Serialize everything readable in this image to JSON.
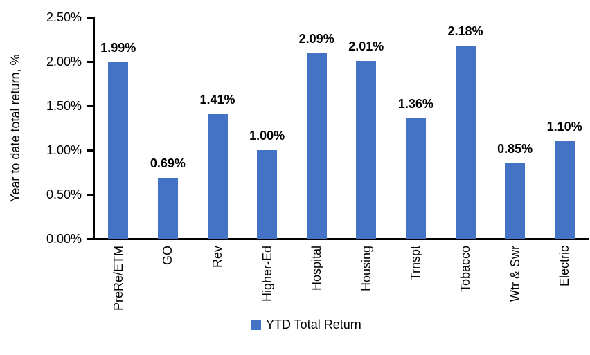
{
  "chart_data": {
    "type": "bar",
    "title": "",
    "xlabel": "",
    "ylabel": "Year to date total return, %",
    "categories": [
      "PreRe/ETM",
      "GO",
      "Rev",
      "Higher-Ed",
      "Hospital",
      "Housing",
      "Trnspt",
      "Tobacco",
      "Wtr & Swr",
      "Electric"
    ],
    "values": [
      1.99,
      0.69,
      1.41,
      1.0,
      2.09,
      2.01,
      1.36,
      2.18,
      0.85,
      1.1
    ],
    "value_labels": [
      "1.99%",
      "0.69%",
      "1.41%",
      "1.00%",
      "2.09%",
      "2.01%",
      "1.36%",
      "2.18%",
      "0.85%",
      "1.10%"
    ],
    "ylim": [
      0,
      2.5
    ],
    "ytick_step": 0.5,
    "ytick_labels": [
      "0.00%",
      "0.50%",
      "1.00%",
      "1.50%",
      "2.00%",
      "2.50%"
    ],
    "grid": false,
    "bar_color": "#4472C4",
    "axis_color": "#000000",
    "legend_position": "bottom-center",
    "legend": [
      {
        "label": "YTD Total Return",
        "color": "#4472C4"
      }
    ]
  }
}
